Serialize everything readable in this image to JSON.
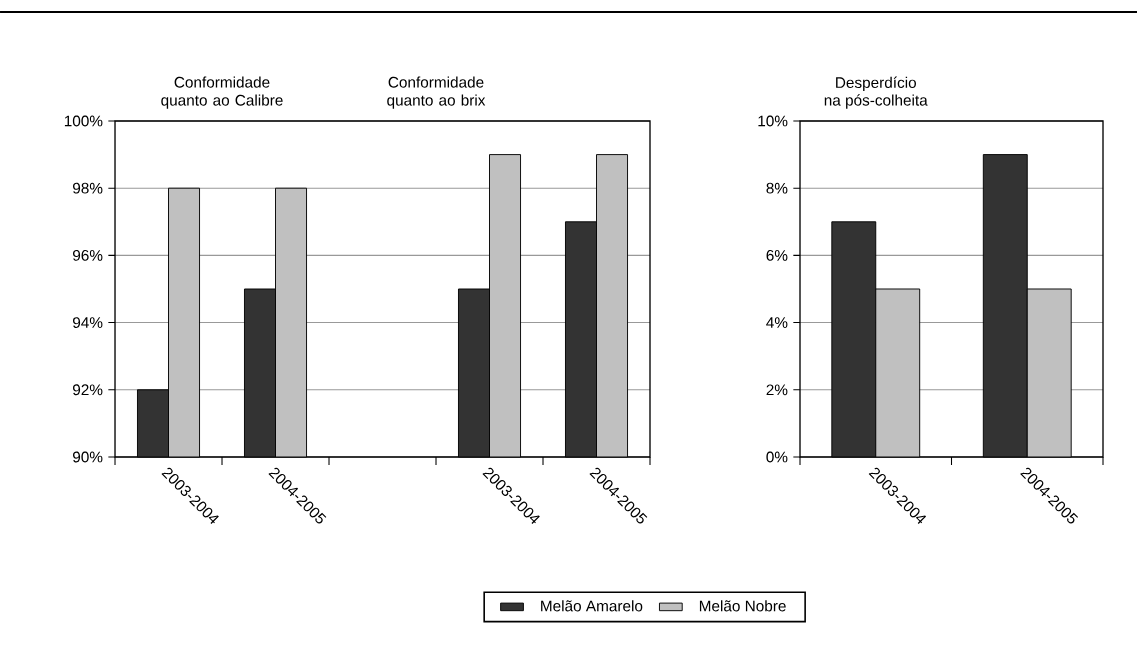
{
  "chart_data": [
    {
      "type": "bar",
      "annotations": [
        "Conformidade quanto ao Calibre",
        "Conformidade quanto ao brix"
      ],
      "categories": [
        "2003-2004",
        "2004-2005",
        null,
        "2003-2004",
        "2004-2005"
      ],
      "series": [
        {
          "name": "Melão Amarelo",
          "color": "#333333",
          "values": [
            92,
            95,
            null,
            95,
            97
          ]
        },
        {
          "name": "Melão Nobre",
          "color": "#c0c0c0",
          "values": [
            98,
            98,
            null,
            99,
            99
          ]
        }
      ],
      "ylim": [
        90,
        100
      ],
      "yticks": [
        {
          "value": 90,
          "label": "90%"
        },
        {
          "value": 92,
          "label": "92%"
        },
        {
          "value": 94,
          "label": "94%"
        },
        {
          "value": 96,
          "label": "96%"
        },
        {
          "value": 98,
          "label": "98%"
        },
        {
          "value": 100,
          "label": "100%"
        }
      ],
      "grid": "y",
      "legend": "bottom"
    },
    {
      "type": "bar",
      "title": "Desperdício",
      "subtitle": "na pós-colheita",
      "categories": [
        "2003-2004",
        "2004-2005"
      ],
      "series": [
        {
          "color": "#333333",
          "values": [
            7,
            9
          ]
        },
        {
          "color": "#c0c0c0",
          "values": [
            5,
            5
          ]
        }
      ],
      "ylim": [
        0,
        10
      ],
      "yticks": [
        {
          "value": 0,
          "label": "0%"
        },
        {
          "value": 2,
          "label": "2%"
        },
        {
          "value": 4,
          "label": "4%"
        },
        {
          "value": 6,
          "label": "6%"
        },
        {
          "value": 8,
          "label": "8%"
        },
        {
          "value": 10,
          "label": "10%"
        }
      ],
      "grid": "y"
    }
  ]
}
